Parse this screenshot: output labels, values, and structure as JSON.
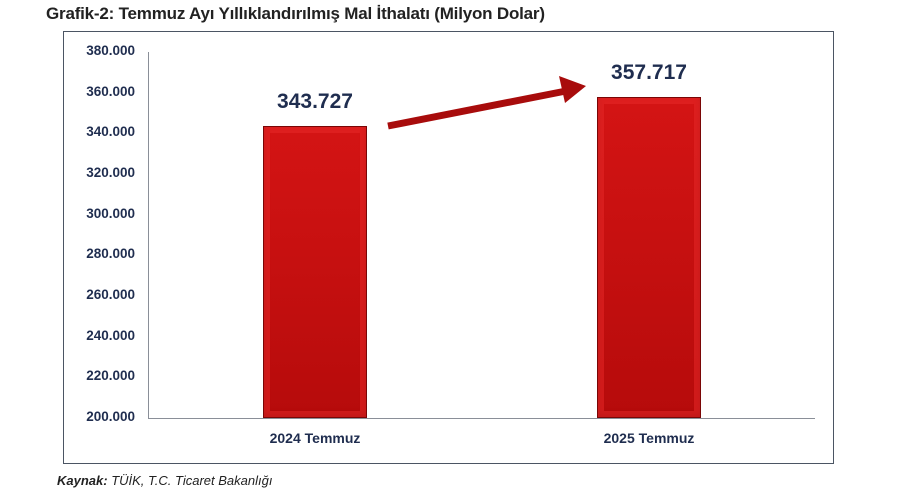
{
  "title": "Grafik-2: Temmuz Ayı Yıllıklandırılmış Mal İthalatı (Milyon Dolar)",
  "source": {
    "label": "Kaynak:",
    "text": " TÜİK, T.C. Ticaret Bakanlığı"
  },
  "colors": {
    "bar": "#c00d0d",
    "text": "#1f2d4f",
    "arrow": "#a80c0c"
  },
  "chart_data": {
    "type": "bar",
    "title": "Grafik-2: Temmuz Ayı Yıllıklandırılmış Mal İthalatı (Milyon Dolar)",
    "categories": [
      "2024 Temmuz",
      "2025 Temmuz"
    ],
    "values": [
      343727,
      357717
    ],
    "value_labels": [
      "343.727",
      "357.717"
    ],
    "xlabel": "",
    "ylabel": "",
    "ylim": [
      200000,
      380000
    ],
    "yticks": [
      "200.000",
      "220.000",
      "240.000",
      "260.000",
      "280.000",
      "300.000",
      "320.000",
      "340.000",
      "360.000",
      "380.000"
    ],
    "grid": false,
    "legend": null,
    "annotations": [
      "Arrow from 2024 bar rising to 2025 bar indicating increase"
    ],
    "source": "Kaynak: TÜİK, T.C. Ticaret Bakanlığı"
  }
}
